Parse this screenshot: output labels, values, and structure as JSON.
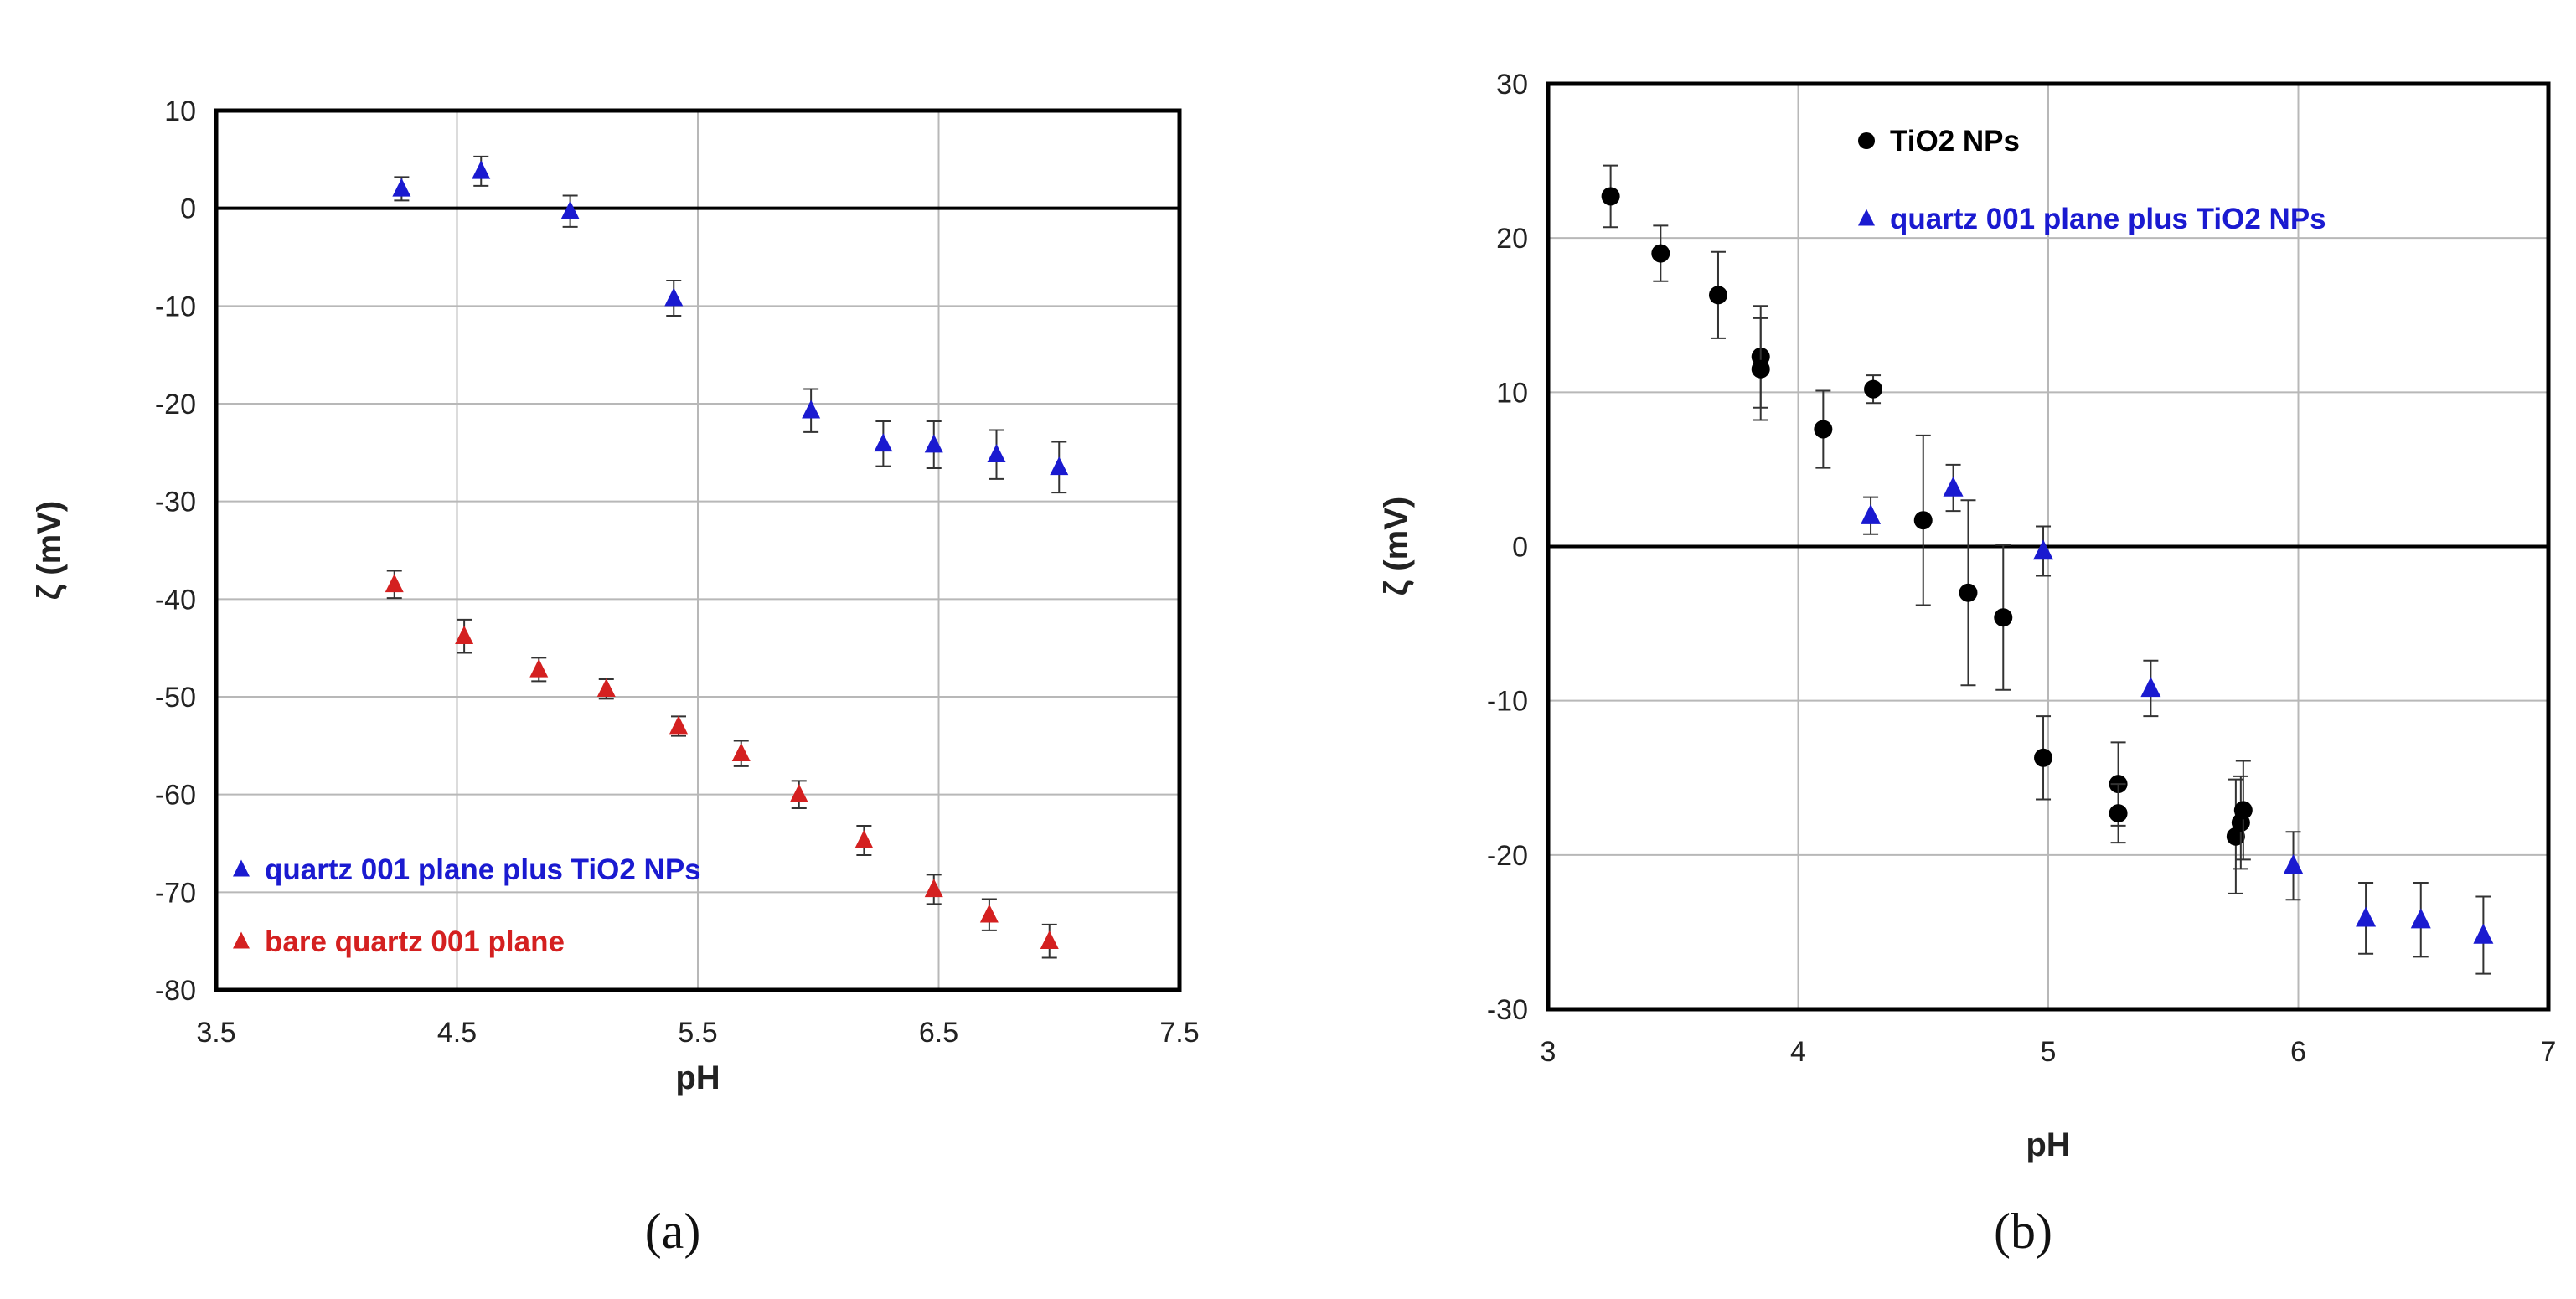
{
  "chart_data": [
    {
      "type": "scatter",
      "panel_label": "(a)",
      "xlabel": "pH",
      "ylabel": "ζ (mV)",
      "xlim": [
        3.5,
        7.5
      ],
      "ylim": [
        -80,
        10
      ],
      "xticks": [
        "3.5",
        "4.5",
        "5.5",
        "6.5",
        "7.5"
      ],
      "yticks": [
        "10",
        "0",
        "-10",
        "-20",
        "-30",
        "-40",
        "-50",
        "-60",
        "-70",
        "-80"
      ],
      "xtick_values": [
        3.5,
        4.5,
        5.5,
        6.5,
        7.5
      ],
      "ytick_values": [
        10,
        0,
        -10,
        -20,
        -30,
        -40,
        -50,
        -60,
        -70,
        -80
      ],
      "grid": true,
      "legend_position": "bottom-left",
      "series": [
        {
          "name": "quartz 001 plane plus TiO2 NPs",
          "color": "#1a1ad0",
          "marker": "triangle",
          "x": [
            4.27,
            4.6,
            4.97,
            5.4,
            5.97,
            6.27,
            6.48,
            6.74,
            7.0
          ],
          "y": [
            2,
            3.8,
            -0.3,
            -9.2,
            -20.7,
            -24.1,
            -24.2,
            -25.2,
            -26.5
          ],
          "err": [
            1.2,
            1.5,
            1.6,
            1.8,
            2.2,
            2.3,
            2.4,
            2.5,
            2.6
          ]
        },
        {
          "name": "bare quartz 001 plane",
          "color": "#d42020",
          "marker": "triangle",
          "x": [
            4.24,
            4.53,
            4.84,
            5.12,
            5.42,
            5.68,
            5.92,
            6.19,
            6.48,
            6.71,
            6.96
          ],
          "y": [
            -38.5,
            -43.8,
            -47.2,
            -49.2,
            -53,
            -55.8,
            -60,
            -64.7,
            -69.7,
            -72.3,
            -75
          ],
          "err": [
            1.4,
            1.7,
            1.2,
            1.0,
            1.0,
            1.3,
            1.4,
            1.5,
            1.5,
            1.6,
            1.7
          ]
        }
      ],
      "reference_line": {
        "y": 0
      }
    },
    {
      "type": "scatter",
      "panel_label": "(b)",
      "xlabel": "pH",
      "ylabel": "ζ (mV)",
      "xlim": [
        3,
        7
      ],
      "ylim": [
        -30,
        30
      ],
      "xticks": [
        "3",
        "4",
        "5",
        "6",
        "7"
      ],
      "yticks": [
        "30",
        "20",
        "10",
        "0",
        "-10",
        "-20",
        "-30"
      ],
      "xtick_values": [
        3,
        4,
        5,
        6,
        7
      ],
      "ytick_values": [
        30,
        20,
        10,
        0,
        -10,
        -20,
        -30
      ],
      "grid": true,
      "legend_position": "top-left",
      "series": [
        {
          "name": "TiO2 NPs",
          "color": "#000000",
          "marker": "circle",
          "x": [
            3.25,
            3.45,
            3.68,
            3.85,
            3.85,
            4.1,
            4.3,
            4.5,
            4.68,
            4.82,
            4.98,
            5.28,
            5.28,
            5.75,
            5.77,
            5.78
          ],
          "y": [
            22.7,
            19,
            16.3,
            12.3,
            11.5,
            7.6,
            10.2,
            1.7,
            -3,
            -4.6,
            -13.7,
            -15.4,
            -17.3,
            -18.8,
            -17.9,
            -17.1
          ],
          "err": [
            2.0,
            1.8,
            2.8,
            3.3,
            3.3,
            2.5,
            0.9,
            5.5,
            6.0,
            4.7,
            2.7,
            2.7,
            1.9,
            3.7,
            3.0,
            3.2
          ]
        },
        {
          "name": "quartz 001 plane plus TiO2 NPs",
          "color": "#1a1ad0",
          "marker": "triangle",
          "x": [
            4.29,
            4.62,
            4.98,
            5.41,
            5.98,
            6.27,
            6.49,
            6.74
          ],
          "y": [
            2,
            3.8,
            -0.3,
            -9.2,
            -20.7,
            -24.1,
            -24.2,
            -25.2
          ],
          "err": [
            1.2,
            1.5,
            1.6,
            1.8,
            2.2,
            2.3,
            2.4,
            2.5
          ]
        }
      ],
      "reference_line": {
        "y": 0
      }
    }
  ]
}
